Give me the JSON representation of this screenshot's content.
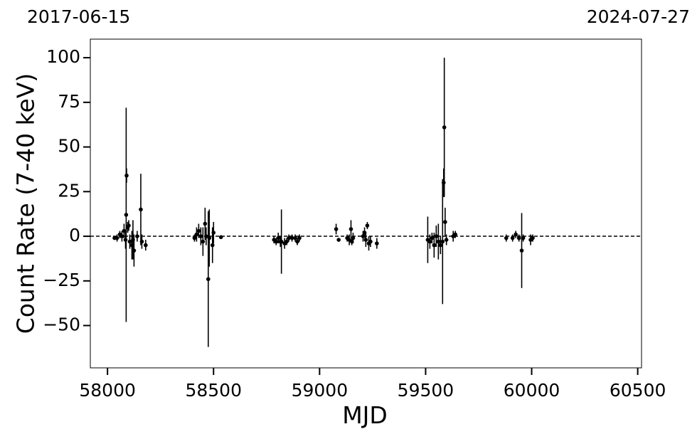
{
  "chart_data": {
    "type": "scatter",
    "x_label": "MJD",
    "y_label": "Count Rate (7-40 keV)",
    "top_left_label": "2017-06-15",
    "top_right_label": "2024-07-27",
    "color": "#000000",
    "reference_line": 0,
    "xlim": [
      57919,
      60518
    ],
    "ylim": [
      -73.7,
      110.4
    ],
    "xticks": [
      58000,
      58500,
      59000,
      59500,
      60000,
      60500
    ],
    "yticks": [
      {
        "value": -50,
        "label": "−50"
      },
      {
        "value": -25,
        "label": "−25"
      },
      0,
      25,
      50,
      75,
      100
    ],
    "x": [
      58033,
      58045,
      58058,
      58068,
      58078,
      58085,
      58088,
      58090,
      58095,
      58100,
      58105,
      58115,
      58120,
      58125,
      58140,
      58157,
      58162,
      58180,
      58410,
      58420,
      58430,
      58440,
      58450,
      58460,
      58465,
      58475,
      58480,
      58495,
      58500,
      58535,
      58785,
      58795,
      58805,
      58815,
      58820,
      58835,
      58845,
      58855,
      58870,
      58885,
      58895,
      58905,
      59078,
      59090,
      59130,
      59140,
      59148,
      59152,
      59158,
      59205,
      59212,
      59218,
      59225,
      59232,
      59240,
      59270,
      59510,
      59520,
      59530,
      59540,
      59550,
      59560,
      59570,
      59580,
      59585,
      59588,
      59592,
      59598,
      59630,
      59640,
      59880,
      59910,
      59925,
      59940,
      59953,
      59960,
      59995,
      60005
    ],
    "values": [
      -1,
      -1,
      1,
      0,
      3,
      -2,
      12,
      34,
      5,
      6,
      -3,
      -5,
      -2,
      -8,
      0,
      15,
      -3,
      -5,
      -1,
      1,
      3,
      0,
      -3,
      7,
      0,
      -24,
      -1,
      -5,
      2,
      -0.5,
      -2,
      -3,
      -1,
      -3,
      -3,
      -4,
      -3,
      -1,
      -1,
      -1,
      -3,
      -1,
      4,
      -2,
      -1,
      -2,
      4,
      -3,
      -1,
      0,
      2,
      -2,
      6,
      -4,
      -3,
      -4,
      -2,
      -3,
      -1,
      -5,
      0,
      -3,
      -5,
      -3,
      30,
      61,
      8,
      -2,
      0,
      1,
      -1,
      -1,
      1,
      -1,
      -8,
      -1,
      -2,
      -1
    ],
    "errors": [
      1,
      2,
      2,
      3,
      4,
      5,
      60,
      4,
      3,
      3,
      4,
      8,
      11,
      9,
      3,
      20,
      4,
      3,
      2,
      4,
      4,
      5,
      8,
      9,
      5,
      38,
      16,
      10,
      6,
      1,
      2,
      2,
      3,
      3,
      18,
      3,
      2,
      2,
      2,
      2,
      2,
      2,
      3,
      1,
      2,
      3,
      5,
      2,
      3,
      3,
      3,
      4,
      2,
      4,
      3,
      3,
      13,
      4,
      3,
      7,
      6,
      10,
      5,
      35,
      8,
      39,
      8,
      3,
      3,
      2,
      2,
      2,
      2,
      2,
      21,
      2,
      3,
      2
    ]
  }
}
